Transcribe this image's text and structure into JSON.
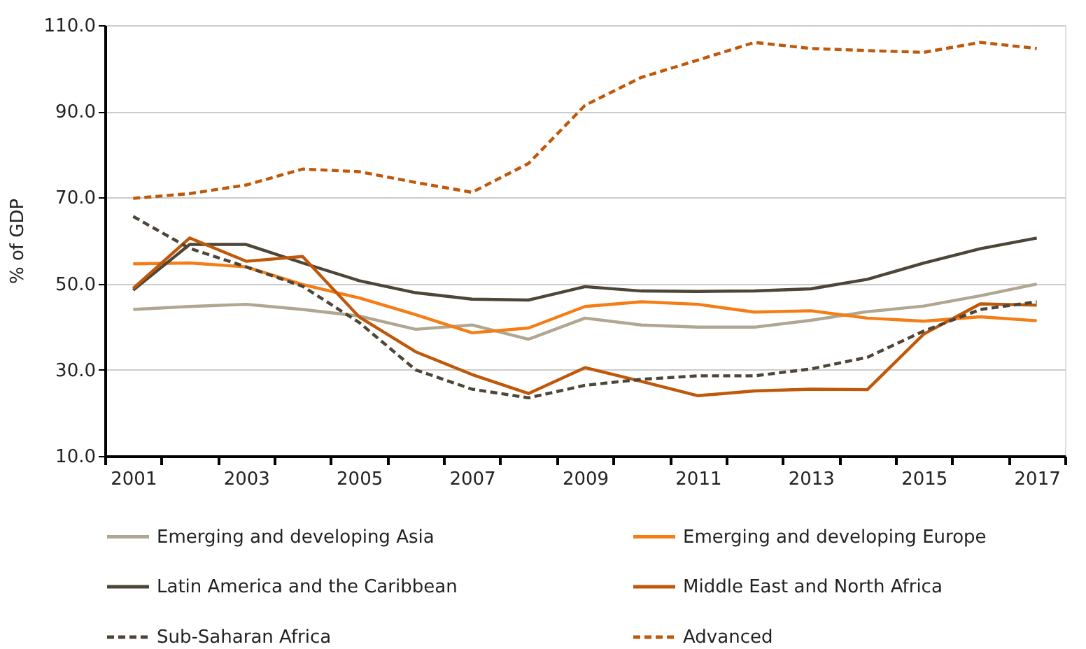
{
  "chart_data": {
    "type": "line",
    "ylabel": "% of GDP",
    "categories": [
      "2001",
      null,
      "2003",
      null,
      "2005",
      null,
      "2007",
      null,
      "2009",
      null,
      "2011",
      null,
      "2013",
      null,
      "2015",
      null,
      "2017"
    ],
    "ylim": [
      10,
      110
    ],
    "yticks": [
      {
        "value": 10,
        "label": "10.0"
      },
      {
        "value": 30,
        "label": "30.0"
      },
      {
        "value": 50,
        "label": "50.0"
      },
      {
        "value": 70,
        "label": "70.0"
      },
      {
        "value": 90,
        "label": "90.0"
      },
      {
        "value": 110,
        "label": "110.0"
      }
    ],
    "grid": "y",
    "legend": "bottom",
    "marker": "none",
    "series": [
      {
        "name": "Emerging and developing  Asia",
        "color": "#b0a691",
        "line_style": "solid",
        "values": [
          44.0,
          44.7,
          45.2,
          44.0,
          42.5,
          39.4,
          40.4,
          37.1,
          42.0,
          40.4,
          39.9,
          39.9,
          41.5,
          43.5,
          44.8,
          47.2,
          49.9
        ]
      },
      {
        "name": "Emerging and developing Europe",
        "color": "#f57d15",
        "line_style": "solid",
        "values": [
          54.6,
          54.8,
          53.9,
          49.8,
          46.7,
          42.8,
          38.6,
          39.7,
          44.7,
          45.8,
          45.2,
          43.4,
          43.7,
          42.0,
          41.3,
          42.3,
          41.4
        ]
      },
      {
        "name": "Latin America and the Caribbean",
        "color": "#4d4538",
        "line_style": "solid",
        "values": [
          48.5,
          59.1,
          59.1,
          54.8,
          50.7,
          47.9,
          46.4,
          46.2,
          49.3,
          48.3,
          48.2,
          48.3,
          48.8,
          51.0,
          54.8,
          58.1,
          60.6
        ]
      },
      {
        "name": "Middle East and North Africa",
        "color": "#c0580a",
        "line_style": "solid",
        "values": [
          48.9,
          60.6,
          55.2,
          56.3,
          42.3,
          34.2,
          28.9,
          24.5,
          30.5,
          27.3,
          24.0,
          25.1,
          25.5,
          25.4,
          38.3,
          45.3,
          45.0
        ]
      },
      {
        "name": "Sub-Saharan Africa",
        "color": "#4d4538",
        "line_style": "dashed",
        "values": [
          65.6,
          58.2,
          53.9,
          49.4,
          41.0,
          30.0,
          25.5,
          23.5,
          26.4,
          27.8,
          28.6,
          28.6,
          30.2,
          32.9,
          39.0,
          44.0,
          45.8
        ]
      },
      {
        "name": "Advanced",
        "color": "#c0580a",
        "line_style": "dashed",
        "values": [
          69.8,
          70.9,
          72.9,
          76.6,
          76.0,
          73.5,
          71.2,
          77.9,
          91.4,
          97.9,
          101.9,
          106.0,
          104.6,
          104.1,
          103.7,
          106.0,
          104.6
        ]
      }
    ]
  }
}
